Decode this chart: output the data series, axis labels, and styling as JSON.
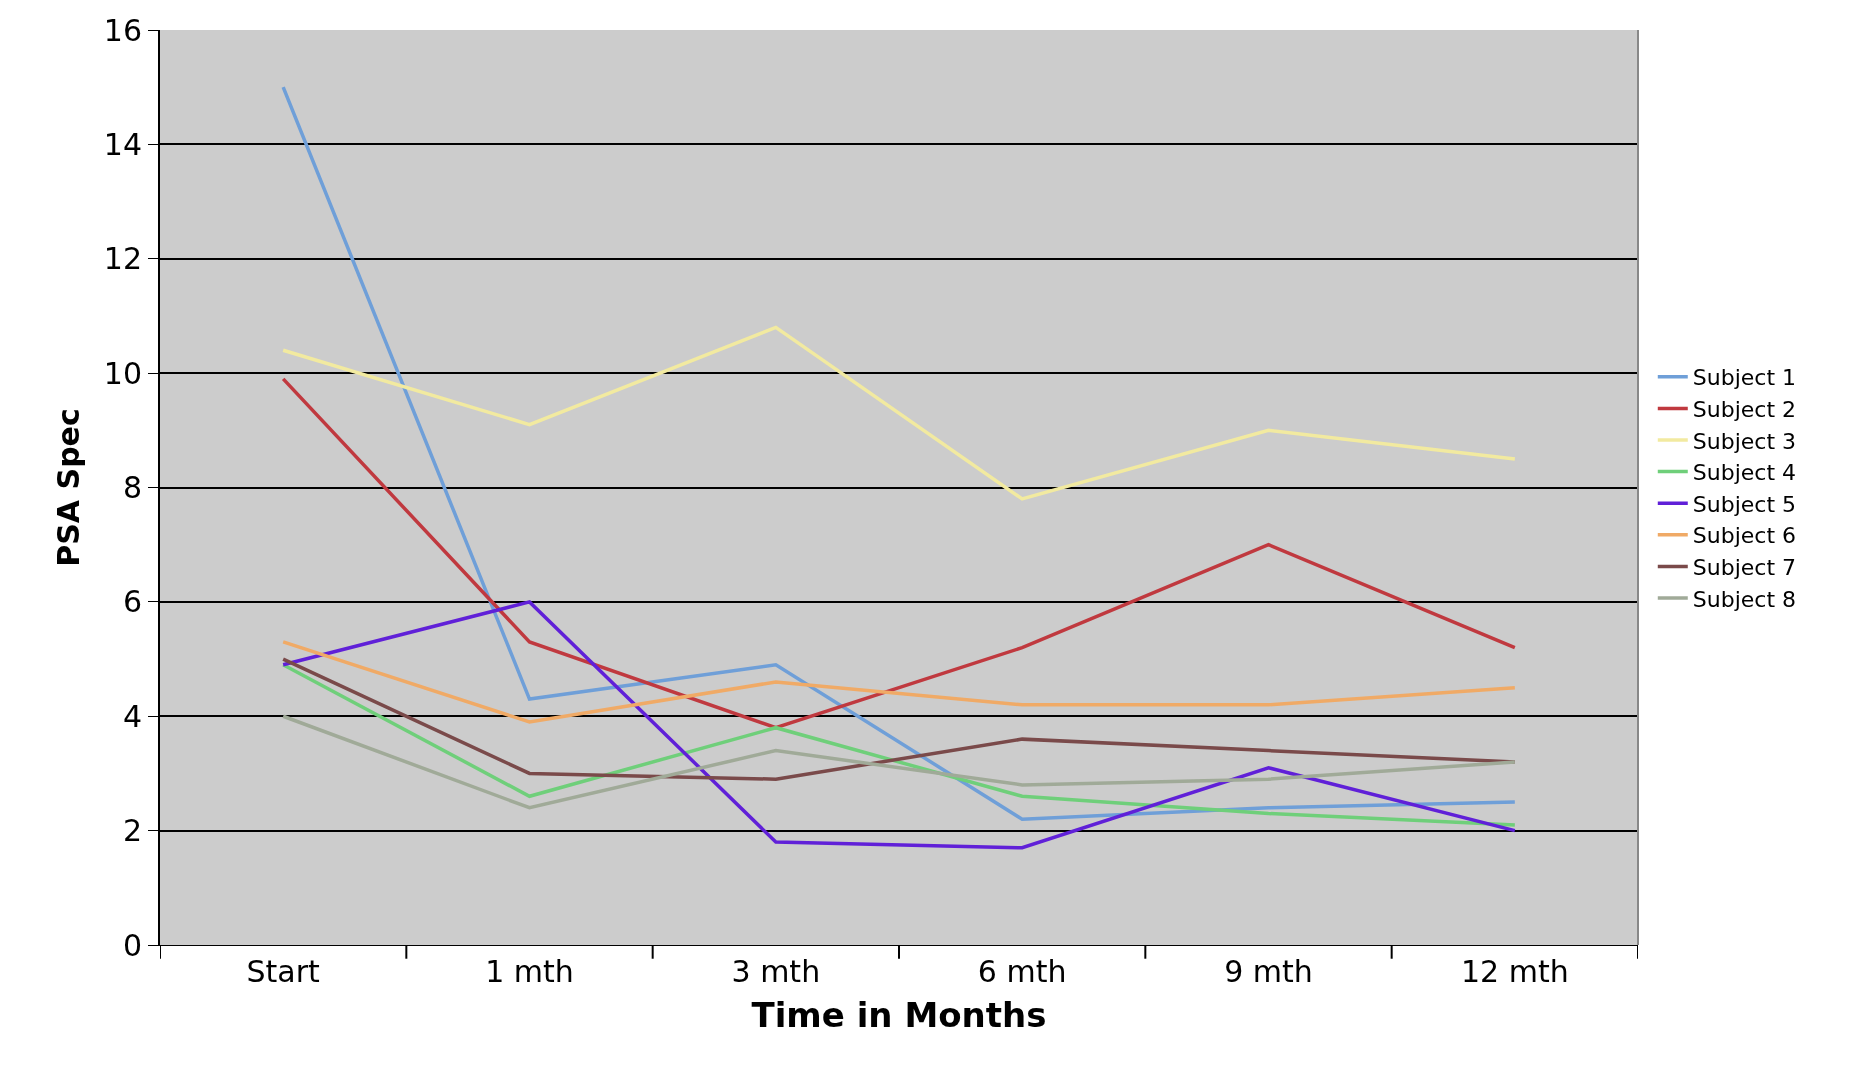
{
  "chart_data": {
    "type": "line",
    "xlabel": "Time in Months",
    "ylabel": "PSA Spec",
    "categories": [
      "Start",
      "1 mth",
      "3 mth",
      "6 mth",
      "9 mth",
      "12 mth"
    ],
    "ylim": [
      0,
      16
    ],
    "yticks": [
      0,
      2,
      4,
      6,
      8,
      10,
      12,
      14,
      16
    ],
    "grid": "y",
    "legend": "right",
    "marker": "none",
    "line_style": "solid",
    "series": [
      {
        "name": "Subject 1",
        "color": "#6f9fd8",
        "values": [
          15,
          4.3,
          4.9,
          2.2,
          2.4,
          2.5
        ]
      },
      {
        "name": "Subject 2",
        "color": "#c0393f",
        "values": [
          9.9,
          5.3,
          3.8,
          5.2,
          7.0,
          5.2
        ]
      },
      {
        "name": "Subject 3",
        "color": "#f2eaa0",
        "values": [
          10.4,
          9.1,
          10.8,
          7.8,
          9.0,
          8.5
        ]
      },
      {
        "name": "Subject 4",
        "color": "#6fcf7a",
        "values": [
          4.9,
          2.6,
          3.8,
          2.6,
          2.3,
          2.1
        ]
      },
      {
        "name": "Subject 5",
        "color": "#6020d8",
        "values": [
          4.9,
          6.0,
          1.8,
          1.7,
          3.1,
          2.0
        ]
      },
      {
        "name": "Subject 6",
        "color": "#f0aa66",
        "values": [
          5.3,
          3.9,
          4.6,
          4.2,
          4.2,
          4.5
        ]
      },
      {
        "name": "Subject 7",
        "color": "#7a4a4a",
        "values": [
          5.0,
          3.0,
          2.9,
          3.6,
          3.4,
          3.2
        ]
      },
      {
        "name": "Subject 8",
        "color": "#a0aa98",
        "values": [
          4.0,
          2.4,
          3.4,
          2.8,
          2.9,
          3.2
        ]
      }
    ]
  }
}
